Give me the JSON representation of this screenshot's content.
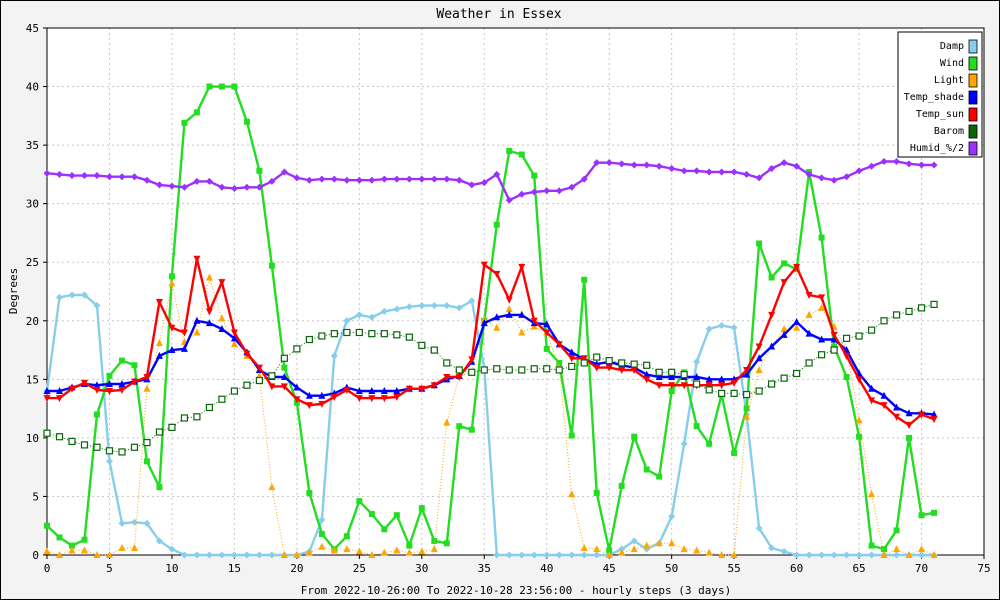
{
  "chart_data": {
    "type": "line",
    "title": "Weather in Essex",
    "xlabel": "From 2022-10-26:00 To 2022-10-28 23:56:00 - hourly steps (3 days)",
    "ylabel": "Degrees",
    "xlim": [
      0,
      75
    ],
    "ylim": [
      0,
      45
    ],
    "x_ticks": [
      0,
      5,
      10,
      15,
      20,
      25,
      30,
      35,
      40,
      45,
      50,
      55,
      60,
      65,
      70,
      75
    ],
    "y_ticks": [
      0,
      5,
      10,
      15,
      20,
      25,
      30,
      35,
      40,
      45
    ],
    "grid": true,
    "legend_position": "top-right",
    "x": [
      0,
      1,
      2,
      3,
      4,
      5,
      6,
      7,
      8,
      9,
      10,
      11,
      12,
      13,
      14,
      15,
      16,
      17,
      18,
      19,
      20,
      21,
      22,
      23,
      24,
      25,
      26,
      27,
      28,
      29,
      30,
      31,
      32,
      33,
      34,
      35,
      36,
      37,
      38,
      39,
      40,
      41,
      42,
      43,
      44,
      45,
      46,
      47,
      48,
      49,
      50,
      51,
      52,
      53,
      54,
      55,
      56,
      57,
      58,
      59,
      60,
      61,
      62,
      63,
      64,
      65,
      66,
      67,
      68,
      69,
      70,
      71
    ],
    "series": [
      {
        "name": "Damp",
        "color": "#87ceeb",
        "marker": "diamond",
        "line": "solid",
        "values": [
          14.0,
          22.0,
          22.2,
          22.2,
          21.3,
          8.0,
          2.7,
          2.8,
          2.7,
          1.2,
          0.5,
          0.0,
          0.0,
          0.0,
          0.0,
          0.0,
          0.0,
          0.0,
          0.0,
          0.0,
          0.0,
          0.3,
          3.0,
          17.0,
          20.0,
          20.5,
          20.3,
          20.8,
          21.0,
          21.2,
          21.3,
          21.3,
          21.3,
          21.1,
          21.7,
          16.0,
          0.0,
          0.0,
          0.0,
          0.0,
          0.0,
          0.0,
          0.0,
          0.0,
          0.0,
          0.0,
          0.5,
          1.2,
          0.5,
          1.0,
          3.3,
          9.5,
          16.5,
          19.3,
          19.6,
          19.4,
          12.0,
          2.3,
          0.6,
          0.3,
          0.0,
          0.0,
          0.0,
          0.0,
          0.0,
          0.0,
          0.0,
          0.0,
          0.0,
          0.0,
          0.0,
          0.0
        ]
      },
      {
        "name": "Wind",
        "color": "#22dd22",
        "marker": "square",
        "line": "solid",
        "values": [
          2.5,
          1.5,
          0.8,
          1.3,
          12.0,
          15.3,
          16.6,
          16.2,
          8.0,
          5.8,
          23.8,
          36.9,
          37.8,
          40.0,
          40.0,
          40.0,
          37.0,
          32.8,
          24.7,
          16.0,
          13.0,
          5.3,
          1.8,
          0.5,
          1.6,
          4.6,
          3.5,
          2.2,
          3.4,
          0.8,
          4.0,
          1.2,
          1.0,
          11.0,
          10.7,
          20.0,
          28.2,
          34.5,
          34.2,
          32.4,
          17.6,
          16.4,
          10.2,
          23.5,
          5.3,
          0.4,
          5.9,
          10.1,
          7.3,
          6.7,
          14.0,
          15.6,
          11.0,
          9.5,
          13.7,
          8.7,
          12.5,
          26.6,
          23.7,
          24.9,
          24.4,
          32.7,
          27.1,
          17.8,
          15.2,
          10.1,
          0.8,
          0.5,
          2.1,
          10.0,
          3.4,
          3.6
        ]
      },
      {
        "name": "Light",
        "color": "#ffa500",
        "marker": "triangle",
        "line": "dotted",
        "values": [
          0.3,
          0.0,
          0.4,
          0.4,
          0.0,
          0.0,
          0.6,
          0.6,
          14.2,
          18.1,
          23.2,
          18.2,
          19.0,
          23.7,
          20.2,
          18.0,
          17.0,
          15.3,
          5.8,
          0.0,
          0.0,
          0.2,
          0.7,
          0.4,
          0.5,
          0.3,
          0.0,
          0.2,
          0.4,
          0.2,
          0.3,
          0.5,
          11.3,
          15.3,
          15.6,
          20.1,
          19.4,
          21.0,
          19.0,
          19.5,
          19.0,
          16.0,
          5.2,
          0.6,
          0.5,
          0.0,
          0.2,
          0.5,
          0.8,
          1.0,
          1.0,
          0.5,
          0.4,
          0.2,
          0.0,
          0.0,
          11.8,
          15.8,
          17.8,
          19.3,
          19.4,
          20.5,
          21.1,
          19.5,
          17.5,
          11.5,
          5.2,
          0.0,
          0.5,
          0.0,
          0.5,
          0.0
        ]
      },
      {
        "name": "Temp_shade",
        "color": "#0000ff",
        "marker": "triangle",
        "line": "solid",
        "values": [
          14.0,
          14.0,
          14.3,
          14.6,
          14.5,
          14.6,
          14.6,
          14.8,
          15.0,
          17.0,
          17.5,
          17.6,
          20.0,
          19.8,
          19.3,
          18.5,
          17.3,
          15.8,
          15.2,
          15.2,
          14.3,
          13.6,
          13.6,
          13.8,
          14.3,
          14.0,
          14.0,
          14.0,
          14.0,
          14.2,
          14.2,
          14.5,
          15.0,
          15.3,
          16.5,
          19.8,
          20.3,
          20.5,
          20.5,
          19.8,
          19.7,
          18.0,
          17.3,
          16.7,
          16.3,
          16.5,
          16.2,
          16.0,
          15.4,
          15.2,
          15.2,
          15.2,
          15.2,
          15.0,
          15.0,
          15.0,
          15.4,
          16.8,
          17.8,
          18.8,
          19.9,
          18.9,
          18.4,
          18.4,
          17.5,
          15.5,
          14.2,
          13.6,
          12.6,
          12.1,
          12.1,
          12.0
        ]
      },
      {
        "name": "Temp_sun",
        "color": "#ff0000",
        "marker": "triangle-down",
        "line": "solid",
        "values": [
          13.4,
          13.4,
          14.2,
          14.7,
          14.1,
          14.0,
          14.1,
          14.8,
          15.2,
          21.6,
          19.4,
          19.0,
          25.3,
          20.8,
          23.3,
          19.0,
          17.2,
          16.0,
          14.4,
          14.4,
          13.3,
          12.8,
          12.9,
          13.5,
          14.1,
          13.4,
          13.4,
          13.4,
          13.5,
          14.2,
          14.2,
          14.5,
          15.2,
          15.2,
          16.7,
          24.8,
          24.0,
          21.8,
          24.6,
          20.0,
          19.0,
          18.0,
          16.8,
          16.8,
          16.0,
          16.0,
          15.8,
          15.8,
          15.0,
          14.5,
          14.5,
          14.5,
          14.5,
          14.5,
          14.5,
          14.7,
          15.8,
          17.8,
          20.5,
          23.3,
          24.6,
          22.2,
          22.0,
          18.8,
          17.0,
          15.0,
          13.2,
          12.8,
          11.8,
          11.1,
          12.0,
          11.6
        ]
      },
      {
        "name": "Barom",
        "color": "#0a640a",
        "marker": "open-square",
        "line": "dotted",
        "values": [
          10.4,
          10.1,
          9.7,
          9.4,
          9.2,
          8.9,
          8.8,
          9.2,
          9.6,
          10.5,
          10.9,
          11.7,
          11.8,
          12.6,
          13.3,
          14.0,
          14.5,
          14.9,
          15.3,
          16.8,
          17.6,
          18.4,
          18.7,
          18.9,
          19.0,
          19.0,
          18.9,
          18.9,
          18.8,
          18.6,
          17.9,
          17.5,
          16.4,
          15.8,
          15.6,
          15.8,
          15.9,
          15.8,
          15.8,
          15.9,
          15.9,
          15.8,
          16.1,
          16.4,
          16.9,
          16.6,
          16.4,
          16.3,
          16.2,
          15.6,
          15.6,
          15.4,
          14.6,
          14.1,
          13.8,
          13.8,
          13.7,
          14.0,
          14.6,
          15.1,
          15.5,
          16.4,
          17.1,
          17.5,
          18.5,
          18.7,
          19.2,
          20.0,
          20.5,
          20.8,
          21.1,
          21.4
        ]
      },
      {
        "name": "Humid_%/2",
        "color": "#9b30ff",
        "marker": "diamond",
        "line": "solid",
        "values": [
          32.6,
          32.5,
          32.4,
          32.4,
          32.4,
          32.3,
          32.3,
          32.3,
          32.0,
          31.6,
          31.5,
          31.4,
          31.9,
          31.9,
          31.4,
          31.3,
          31.4,
          31.4,
          31.9,
          32.7,
          32.2,
          32.0,
          32.1,
          32.1,
          32.0,
          32.0,
          32.0,
          32.1,
          32.1,
          32.1,
          32.1,
          32.1,
          32.1,
          32.0,
          31.6,
          31.8,
          32.5,
          30.3,
          30.8,
          31.0,
          31.1,
          31.1,
          31.4,
          32.1,
          33.5,
          33.5,
          33.4,
          33.3,
          33.3,
          33.2,
          33.0,
          32.8,
          32.8,
          32.7,
          32.7,
          32.7,
          32.5,
          32.2,
          33.0,
          33.5,
          33.2,
          32.5,
          32.2,
          32.0,
          32.3,
          32.8,
          33.2,
          33.6,
          33.6,
          33.4,
          33.3,
          33.3
        ]
      }
    ]
  }
}
